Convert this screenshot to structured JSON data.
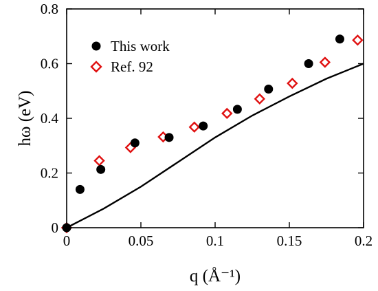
{
  "chart_data": {
    "type": "scatter",
    "xlabel": "q (Å⁻¹)",
    "ylabel": "hω (eV)",
    "xlim": [
      0,
      0.2
    ],
    "ylim": [
      0,
      0.8
    ],
    "xticks": [
      0,
      0.05,
      0.1,
      0.15,
      0.2
    ],
    "xtick_labels": [
      "0",
      "0.05",
      "0.1",
      "0.15",
      "0.2"
    ],
    "yticks": [
      0,
      0.2,
      0.4,
      0.6,
      0.8
    ],
    "ytick_labels": [
      "0",
      "0.2",
      "0.4",
      "0.6",
      "0.8"
    ],
    "legend_position": "top-left",
    "series": [
      {
        "name": "This work",
        "marker": "filled-circle",
        "color": "#000000",
        "x": [
          0,
          0.009,
          0.023,
          0.046,
          0.069,
          0.092,
          0.115,
          0.136,
          0.163,
          0.184
        ],
        "y": [
          0,
          0.14,
          0.213,
          0.31,
          0.33,
          0.372,
          0.433,
          0.507,
          0.6,
          0.69
        ]
      },
      {
        "name": "Ref. 92",
        "marker": "open-diamond",
        "color": "#e01010",
        "x": [
          0,
          0.022,
          0.043,
          0.065,
          0.086,
          0.108,
          0.13,
          0.152,
          0.174,
          0.196
        ],
        "y": [
          0,
          0.245,
          0.293,
          0.332,
          0.368,
          0.418,
          0.471,
          0.528,
          0.605,
          0.686
        ]
      },
      {
        "marker": "line",
        "color": "#000000",
        "x": [
          0,
          0.025,
          0.05,
          0.075,
          0.1,
          0.125,
          0.15,
          0.175,
          0.2
        ],
        "y": [
          0,
          0.07,
          0.15,
          0.24,
          0.33,
          0.41,
          0.48,
          0.545,
          0.6
        ]
      }
    ]
  }
}
